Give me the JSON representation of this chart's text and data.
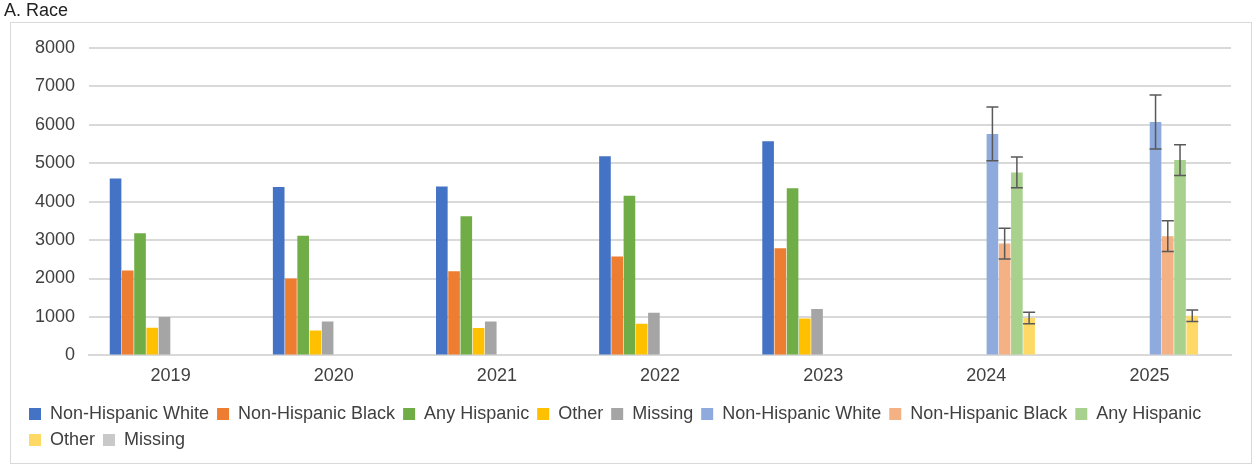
{
  "chart_data": {
    "type": "bar",
    "title": "A. Race",
    "categories": [
      "2019",
      "2020",
      "2021",
      "2022",
      "2023",
      "2024",
      "2025"
    ],
    "series": [
      {
        "name": "Non-Hispanic White",
        "color": "#4472c4",
        "values": [
          4600,
          4380,
          4390,
          5180,
          5570,
          null,
          null
        ]
      },
      {
        "name": "Non-Hispanic Black",
        "color": "#ed7d31",
        "values": [
          2210,
          2000,
          2190,
          2570,
          2790,
          null,
          null
        ]
      },
      {
        "name": "Any Hispanic",
        "color": "#70ad47",
        "values": [
          3180,
          3110,
          3620,
          4150,
          4350,
          null,
          null
        ]
      },
      {
        "name": "Other",
        "color": "#ffc000",
        "values": [
          720,
          650,
          710,
          820,
          960,
          null,
          null
        ]
      },
      {
        "name": "Missing",
        "color": "#a5a5a5",
        "values": [
          1000,
          880,
          880,
          1110,
          1210,
          null,
          null
        ]
      },
      {
        "name": "Non-Hispanic White",
        "color": "#8faadc",
        "values": [
          null,
          null,
          null,
          null,
          null,
          5760,
          6070
        ],
        "errors": [
          null,
          null,
          null,
          null,
          null,
          700,
          700
        ]
      },
      {
        "name": "Non-Hispanic Black",
        "color": "#f4b183",
        "values": [
          null,
          null,
          null,
          null,
          null,
          2910,
          3100
        ],
        "errors": [
          null,
          null,
          null,
          null,
          null,
          400,
          400
        ]
      },
      {
        "name": "Any Hispanic",
        "color": "#a9d18e",
        "values": [
          null,
          null,
          null,
          null,
          null,
          4760,
          5080
        ],
        "errors": [
          null,
          null,
          null,
          null,
          null,
          400,
          400
        ]
      },
      {
        "name": "Other",
        "color": "#ffd966",
        "values": [
          null,
          null,
          null,
          null,
          null,
          970,
          1030
        ],
        "errors": [
          null,
          null,
          null,
          null,
          null,
          150,
          150
        ]
      },
      {
        "name": "Missing",
        "color": "#c9c9c9",
        "values": [
          null,
          null,
          null,
          null,
          null,
          null,
          null
        ]
      }
    ],
    "ylim": [
      0,
      8000
    ],
    "yticks": [
      0,
      1000,
      2000,
      3000,
      4000,
      5000,
      6000,
      7000,
      8000
    ],
    "grid": "y",
    "legend": "bottom"
  }
}
